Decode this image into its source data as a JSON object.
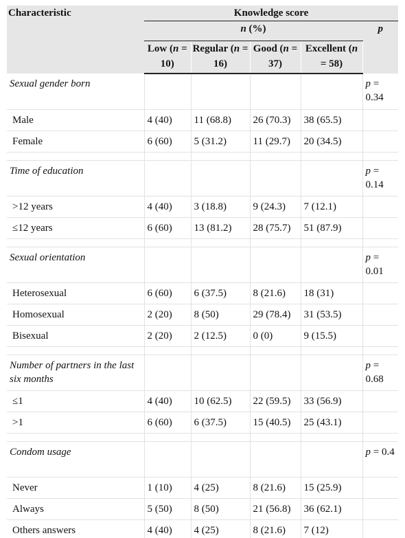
{
  "header": {
    "characteristic": "Characteristic",
    "knowledge_score": "Knowledge score",
    "n_percent": "n (%)",
    "p": "p",
    "columns": [
      {
        "label": "Low (n = 10)"
      },
      {
        "label": "Regular (n = 16)"
      },
      {
        "label": "Good (n = 37)"
      },
      {
        "label": "Excellent (n = 58)"
      }
    ]
  },
  "groups": [
    {
      "name": "Sexual gender born",
      "p": "p = 0.34",
      "rows": [
        {
          "label": "Male",
          "values": [
            "4 (40)",
            "11 (68.8)",
            "26 (70.3)",
            "38 (65.5)"
          ]
        },
        {
          "label": "Female",
          "values": [
            "6 (60)",
            "5 (31.2)",
            "11 (29.7)",
            "20 (34.5)"
          ]
        }
      ]
    },
    {
      "name": "Time of education",
      "p": "p = 0.14",
      "rows": [
        {
          "label": ">12 years",
          "values": [
            "4 (40)",
            "3 (18.8)",
            "9 (24.3)",
            "7 (12.1)"
          ]
        },
        {
          "label": "≤12 years",
          "values": [
            "6 (60)",
            "13 (81.2)",
            "28 (75.7)",
            "51 (87.9)"
          ]
        }
      ]
    },
    {
      "name": "Sexual orientation",
      "p": "p = 0.01",
      "rows": [
        {
          "label": "Heterosexual",
          "values": [
            "6 (60)",
            "6 (37.5)",
            "8 (21.6)",
            "18 (31)"
          ]
        },
        {
          "label": "Homosexual",
          "values": [
            "2 (20)",
            "8 (50)",
            "29 (78.4)",
            "31 (53.5)"
          ]
        },
        {
          "label": "Bisexual",
          "values": [
            "2 (20)",
            "2 (12.5)",
            "0 (0)",
            "9 (15.5)"
          ]
        }
      ]
    },
    {
      "name": "Number of partners in the last six months",
      "p": "p = 0.68",
      "rows": [
        {
          "label": "≤1",
          "values": [
            "4 (40)",
            "10 (62.5)",
            "22 (59.5)",
            "33 (56.9)"
          ]
        },
        {
          "label": ">1",
          "values": [
            "6 (60)",
            "6 (37.5)",
            "15 (40.5)",
            "25 (43.1)"
          ]
        }
      ]
    },
    {
      "name": "Condom usage",
      "p": "p = 0.4",
      "rows": [
        {
          "label": "Never",
          "values": [
            "1 (10)",
            "4 (25)",
            "8 (21.6)",
            "15 (25.9)"
          ]
        },
        {
          "label": "Always",
          "values": [
            "5 (50)",
            "8 (50)",
            "21 (56.8)",
            "36 (62.1)"
          ]
        },
        {
          "label": "Others answers",
          "values": [
            "4 (40)",
            "4 (25)",
            "8 (21.6)",
            "7 (12)"
          ]
        }
      ]
    }
  ]
}
